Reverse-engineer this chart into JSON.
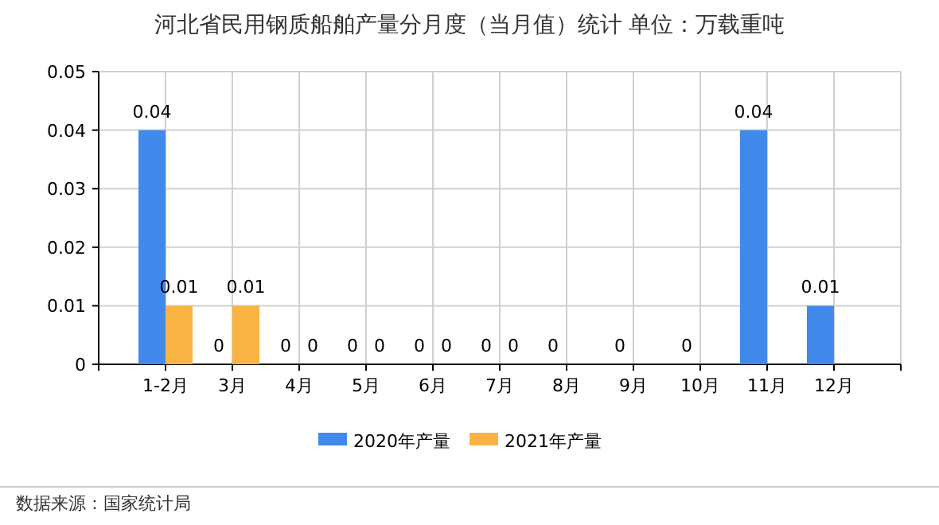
{
  "chart_data": {
    "type": "bar",
    "title": "河北省民用钢质船舶产量分月度（当月值）统计  单位：万载重吨",
    "categories": [
      "1-2月",
      "3月",
      "4月",
      "5月",
      "6月",
      "7月",
      "8月",
      "9月",
      "10月",
      "11月",
      "12月"
    ],
    "series": [
      {
        "name": "2020年产量",
        "color": "#418aeb",
        "values": [
          0.04,
          0,
          0,
          0,
          0,
          0,
          0,
          0,
          0,
          0.04,
          0.01
        ]
      },
      {
        "name": "2021年产量",
        "color": "#f9b443",
        "values": [
          0.01,
          0.01,
          0,
          0,
          0,
          0,
          null,
          null,
          null,
          null,
          null
        ]
      }
    ],
    "ylim": [
      0,
      0.05
    ],
    "yticks": [
      0,
      0.01,
      0.02,
      0.03,
      0.04,
      0.05
    ],
    "grid": true,
    "legend": "bottom",
    "data_labels": true,
    "annotations": [
      "数据来源：国家统计局"
    ]
  }
}
